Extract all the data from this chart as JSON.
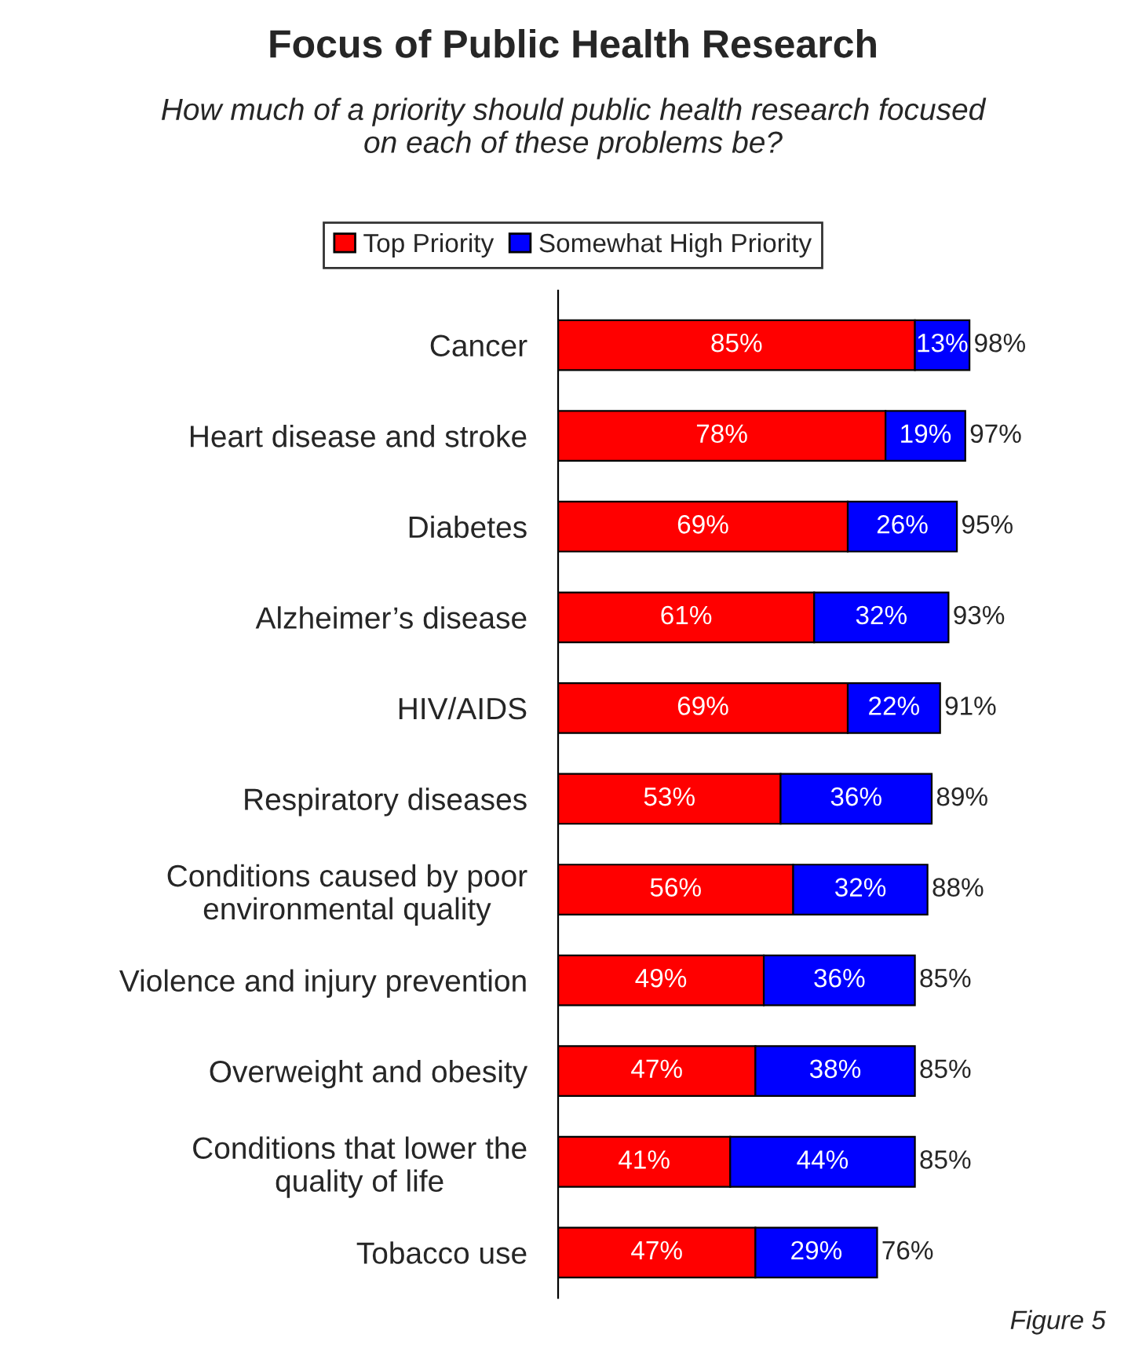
{
  "chart_data": {
    "type": "bar",
    "orientation": "horizontal",
    "stacked": true,
    "title": "Focus of Public Health Research",
    "subtitle": "How much of a priority should public health research focused\non each of these problems be?",
    "categories": [
      "Cancer",
      "Heart disease and stroke",
      "Diabetes",
      "Alzheimer’s disease",
      "HIV/AIDS",
      "Respiratory diseases",
      "Conditions caused by poor\nenvironmental quality",
      "Violence and injury prevention",
      "Overweight and obesity",
      "Conditions that lower the\nquality of life",
      "Tobacco use"
    ],
    "series": [
      {
        "name": "Top Priority",
        "color": "#ff0000",
        "values": [
          85,
          78,
          69,
          61,
          69,
          53,
          56,
          49,
          47,
          41,
          47
        ],
        "value_labels": [
          "85%",
          "78%",
          "69%",
          "61%",
          "69%",
          "53%",
          "56%",
          "49%",
          "47%",
          "41%",
          "47%"
        ]
      },
      {
        "name": "Somewhat High Priority",
        "color": "#0000ff",
        "values": [
          13,
          19,
          26,
          32,
          22,
          36,
          32,
          36,
          38,
          44,
          29
        ],
        "value_labels": [
          "13%",
          "19%",
          "26%",
          "32%",
          "22%",
          "36%",
          "32%",
          "36%",
          "38%",
          "44%",
          "29%"
        ]
      }
    ],
    "totals": [
      "98%",
      "97%",
      "95%",
      "93%",
      "91%",
      "89%",
      "88%",
      "85%",
      "85%",
      "85%",
      "76%"
    ],
    "legend": "top",
    "grid": false,
    "annotations": [
      "Figure 5"
    ]
  }
}
